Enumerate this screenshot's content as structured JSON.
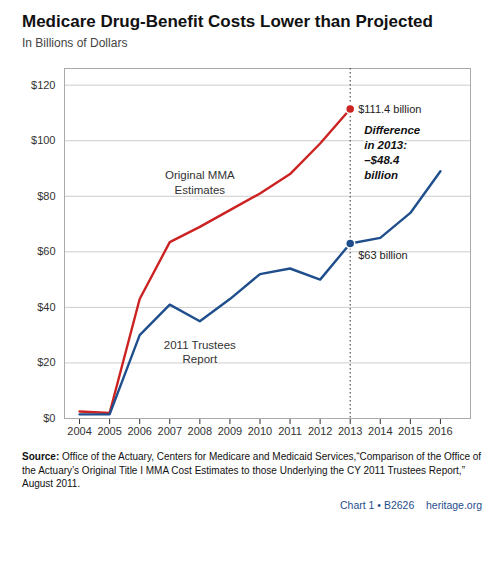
{
  "chart_data": {
    "type": "line",
    "title": "Medicare Drug-Benefit Costs Lower than Projected",
    "subtitle": "In Billions of Dollars",
    "x": [
      2004,
      2005,
      2006,
      2007,
      2008,
      2009,
      2010,
      2011,
      2012,
      2013,
      2014,
      2015,
      2016
    ],
    "series": [
      {
        "name": "Original MMA\nEstimates",
        "color": "#cc2222",
        "values": [
          2.5,
          2.0,
          43.0,
          63.5,
          69.0,
          75.0,
          81.0,
          88.0,
          99.0,
          111.4,
          null,
          null,
          null
        ]
      },
      {
        "name": "2011 Trustees\nReport",
        "color": "#1f4e8c",
        "values": [
          1.5,
          1.5,
          30.0,
          41.0,
          35.0,
          43.0,
          52.0,
          54.0,
          50.0,
          63.0,
          65.0,
          74.0,
          89.0
        ]
      }
    ],
    "xlim": [
      2003.5,
      2017.0
    ],
    "xticks": [
      2004,
      2005,
      2006,
      2007,
      2008,
      2009,
      2010,
      2011,
      2012,
      2013,
      2014,
      2015,
      2016
    ],
    "ylim": [
      0,
      126
    ],
    "yticks": [
      {
        "value": 0,
        "label": "$0"
      },
      {
        "value": 20,
        "label": "$20"
      },
      {
        "value": 40,
        "label": "$40"
      },
      {
        "value": 60,
        "label": "$60"
      },
      {
        "value": 80,
        "label": "$80"
      },
      {
        "value": 100,
        "label": "$100"
      },
      {
        "value": 120,
        "label": "$120"
      }
    ],
    "grid": true,
    "annotations": [
      {
        "text": "$111.4 billion",
        "x": 2013,
        "y": 111.4
      },
      {
        "text": "$63 billion",
        "x": 2013,
        "y": 63.0
      },
      {
        "text": "Difference\nin 2013:\n–$48.4\nbillion",
        "x": 2013
      }
    ],
    "source_label": "Source:",
    "source": "Office of the Actuary, Centers for Medicare and Medicaid Services,“Comparison\nof the Office of the Actuary’s Original Title I MMA Cost Estimates to those Underlying the\nCY 2011 Trustees Report,” August 2011.",
    "footer": "Chart 1 • B2626    heritage.org",
    "footer_color": "#1f4e8c"
  }
}
